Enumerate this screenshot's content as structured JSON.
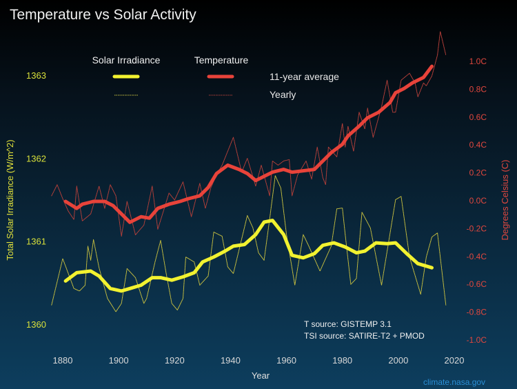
{
  "chart_data": {
    "type": "line",
    "title": "Temperature vs Solar Activity",
    "xlabel": "Year",
    "ylabel_left": "Total Solar Irradiance (W/m^2)",
    "ylabel_right": "Degrees Celsius (C)",
    "xlim": [
      1875,
      2020
    ],
    "ylim_left": [
      1360,
      1363
    ],
    "ylim_right": [
      -1.0,
      1.0
    ],
    "x_ticks": [
      "1880",
      "1900",
      "1920",
      "1940",
      "1960",
      "1980",
      "2000",
      "2020"
    ],
    "y_ticks_left": [
      "1360",
      "1361",
      "1362",
      "1363"
    ],
    "y_ticks_right": [
      "-1.0C",
      "-0.8C",
      "-0.6C",
      "-0.4C",
      "-0.2C",
      "0.0C",
      "0.2C",
      "0.4C",
      "0.6C",
      "0.8C",
      "1.0C"
    ],
    "grid": false,
    "legend": {
      "placement": "top-left",
      "column_headers": [
        "Solar Irradiance",
        "Temperature"
      ],
      "row_labels": [
        "11-year average",
        "Yearly"
      ]
    },
    "annotations": [
      "T source: GISTEMP 3.1",
      "TSI source: SATIRE-T2 + PMOD"
    ],
    "credit": "climate.nasa.gov",
    "colors": {
      "solar": "#f2f230",
      "temperature": "#e8433a",
      "left_axis": "#d8e03a",
      "right_axis": "#e0473e",
      "text": "#e8e8e8",
      "credit": "#2a8fd6"
    },
    "series": [
      {
        "name": "Solar Irradiance 11-year average",
        "axis": "left",
        "style": "thick",
        "color": "#f2f230",
        "x": [
          1881,
          1885,
          1890,
          1893,
          1897,
          1901,
          1904,
          1908,
          1912,
          1915,
          1919,
          1923,
          1927,
          1930,
          1934,
          1938,
          1941,
          1945,
          1949,
          1952,
          1955,
          1959,
          1962,
          1966,
          1970,
          1973,
          1977,
          1981,
          1985,
          1988,
          1992,
          1996,
          1999,
          2003,
          2007,
          2012
        ],
        "y": [
          1360.52,
          1360.62,
          1360.64,
          1360.58,
          1360.43,
          1360.4,
          1360.43,
          1360.47,
          1360.56,
          1360.56,
          1360.53,
          1360.57,
          1360.62,
          1360.75,
          1360.81,
          1360.88,
          1360.94,
          1360.96,
          1361.08,
          1361.23,
          1361.25,
          1361.08,
          1360.83,
          1360.8,
          1360.85,
          1360.95,
          1360.98,
          1360.93,
          1360.86,
          1360.88,
          1360.98,
          1360.97,
          1360.98,
          1360.85,
          1360.73,
          1360.68
        ]
      },
      {
        "name": "Solar Irradiance Yearly",
        "axis": "left",
        "style": "dotted",
        "color": "#c8c040",
        "x": [
          1876,
          1880,
          1882,
          1884,
          1886,
          1888,
          1889,
          1890,
          1891,
          1893,
          1896,
          1899,
          1901,
          1903,
          1906,
          1909,
          1910,
          1913,
          1915,
          1917,
          1919,
          1921,
          1923,
          1924,
          1927,
          1929,
          1932,
          1934,
          1937,
          1939,
          1941,
          1946,
          1948,
          1950,
          1952,
          1954,
          1956,
          1958,
          1960,
          1963,
          1966,
          1968,
          1972,
          1976,
          1978,
          1980,
          1981,
          1983,
          1985,
          1987,
          1990,
          1994,
          1999,
          2001,
          2004,
          2008,
          2010,
          2012,
          2014,
          2017
        ],
        "y": [
          1360.23,
          1360.79,
          1360.61,
          1360.43,
          1360.4,
          1360.47,
          1360.94,
          1360.77,
          1361.02,
          1360.68,
          1360.31,
          1360.15,
          1360.25,
          1360.67,
          1360.56,
          1360.25,
          1360.31,
          1360.75,
          1361.01,
          1360.61,
          1360.25,
          1360.17,
          1360.31,
          1360.81,
          1360.75,
          1360.47,
          1360.58,
          1361.11,
          1361.06,
          1360.69,
          1360.61,
          1361.31,
          1361.16,
          1360.86,
          1360.77,
          1361.27,
          1361.79,
          1361.64,
          1361.08,
          1360.47,
          1361.08,
          1360.94,
          1360.64,
          1360.94,
          1361.39,
          1361.4,
          1361.08,
          1360.48,
          1360.55,
          1361.35,
          1361.16,
          1360.47,
          1361.5,
          1361.54,
          1360.81,
          1360.36,
          1360.81,
          1361.05,
          1361.1,
          1360.23
        ]
      },
      {
        "name": "Temperature 11-year average",
        "axis": "right",
        "style": "thick",
        "color": "#e8433a",
        "x": [
          1881,
          1885,
          1887,
          1891,
          1895,
          1898,
          1901,
          1904,
          1908,
          1911,
          1914,
          1918,
          1922,
          1925,
          1929,
          1932,
          1935,
          1939,
          1943,
          1946,
          1949,
          1951,
          1955,
          1959,
          1962,
          1966,
          1970,
          1972,
          1976,
          1980,
          1982,
          1986,
          1989,
          1993,
          1997,
          1999,
          2002,
          2005,
          2009,
          2012
        ],
        "y": [
          -0.01,
          -0.06,
          -0.03,
          -0.01,
          -0.01,
          -0.04,
          -0.1,
          -0.16,
          -0.12,
          -0.13,
          -0.06,
          -0.03,
          -0.01,
          0.01,
          0.03,
          0.09,
          0.19,
          0.25,
          0.22,
          0.19,
          0.14,
          0.16,
          0.2,
          0.22,
          0.2,
          0.21,
          0.22,
          0.26,
          0.34,
          0.4,
          0.46,
          0.53,
          0.59,
          0.63,
          0.7,
          0.77,
          0.8,
          0.84,
          0.88,
          0.96
        ]
      },
      {
        "name": "Temperature Yearly",
        "axis": "right",
        "style": "dotted",
        "color": "#b8403a",
        "x": [
          1876,
          1878,
          1880,
          1882,
          1884,
          1885,
          1887,
          1890,
          1893,
          1895,
          1897,
          1899,
          1901,
          1903,
          1906,
          1909,
          1910,
          1912,
          1914,
          1918,
          1920,
          1923,
          1926,
          1929,
          1931,
          1933,
          1935,
          1937,
          1941,
          1944,
          1946,
          1949,
          1951,
          1954,
          1955,
          1957,
          1959,
          1961,
          1962,
          1964,
          1967,
          1969,
          1971,
          1973,
          1974,
          1975,
          1978,
          1980,
          1981,
          1982,
          1984,
          1986,
          1988,
          1989,
          1991,
          1994,
          1996,
          1998,
          1999,
          2001,
          2004,
          2006,
          2007,
          2009,
          2010,
          2012,
          2014,
          2015,
          2017
        ],
        "y": [
          0.03,
          0.11,
          0.01,
          -0.08,
          -0.14,
          0.1,
          -0.15,
          -0.1,
          0.1,
          -0.06,
          0.11,
          0.03,
          -0.26,
          -0.01,
          -0.25,
          -0.18,
          -0.09,
          0.1,
          -0.21,
          0.05,
          0.0,
          0.13,
          -0.12,
          0.12,
          -0.06,
          0.09,
          0.18,
          0.25,
          0.45,
          0.2,
          0.3,
          0.1,
          0.25,
          0.03,
          0.28,
          0.25,
          0.28,
          0.29,
          0.03,
          0.18,
          0.28,
          0.15,
          0.38,
          0.16,
          0.11,
          0.38,
          0.31,
          0.55,
          0.38,
          0.53,
          0.35,
          0.63,
          0.51,
          0.66,
          0.45,
          0.67,
          0.86,
          0.63,
          0.63,
          0.86,
          0.91,
          0.84,
          0.74,
          0.84,
          0.82,
          0.89,
          1.04,
          1.21,
          1.04
        ]
      }
    ]
  }
}
